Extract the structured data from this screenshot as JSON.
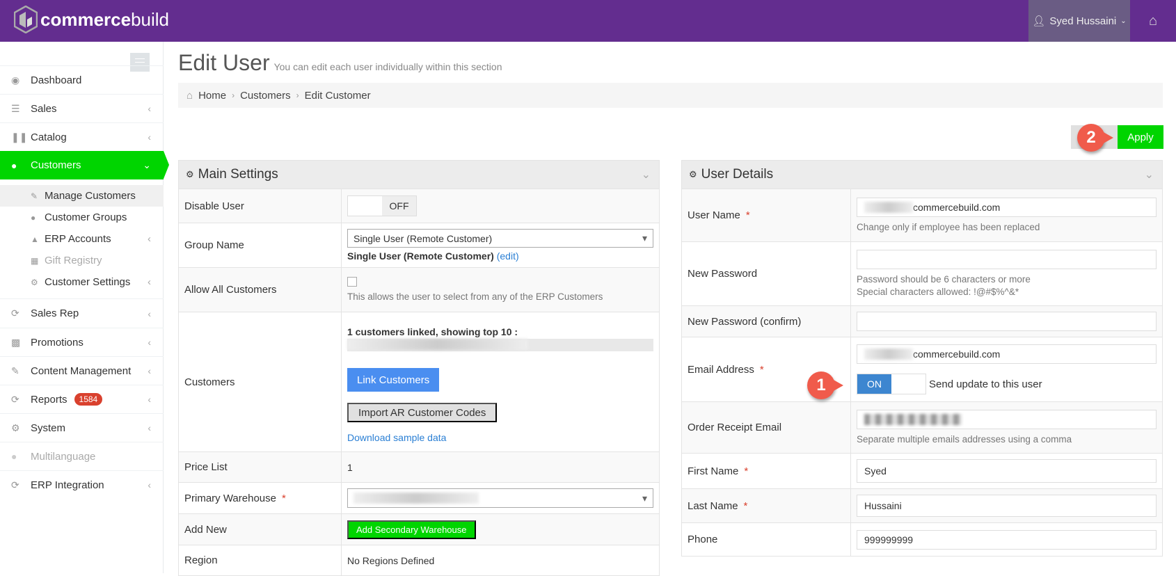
{
  "brand": {
    "name_bold": "commerce",
    "name_light": "build"
  },
  "topbar": {
    "user": "Syed Hussaini",
    "home_icon": "home-icon"
  },
  "sidebar": {
    "items": [
      {
        "label": "Dashboard",
        "icon": "dashboard-icon"
      },
      {
        "label": "Sales",
        "icon": "sales-icon"
      },
      {
        "label": "Catalog",
        "icon": "barcode-icon"
      },
      {
        "label": "Customers",
        "icon": "user-icon",
        "active": true
      },
      {
        "label": "Sales Rep",
        "icon": "refresh-icon"
      },
      {
        "label": "Promotions",
        "icon": "bar-chart-icon"
      },
      {
        "label": "Content Management",
        "icon": "edit-icon"
      },
      {
        "label": "Reports",
        "icon": "refresh-icon",
        "badge": "1584"
      },
      {
        "label": "System",
        "icon": "cogs-icon"
      },
      {
        "label": "Multilanguage",
        "icon": "users-icon",
        "disabled": true
      },
      {
        "label": "ERP Integration",
        "icon": "refresh-icon"
      }
    ],
    "sub_items": [
      {
        "label": "Manage Customers",
        "selected": true
      },
      {
        "label": "Customer Groups"
      },
      {
        "label": "ERP Accounts"
      },
      {
        "label": "Gift Registry",
        "disabled": true
      },
      {
        "label": "Customer Settings"
      }
    ]
  },
  "page": {
    "title": "Edit User",
    "subtitle": "You can edit each user individually within this section"
  },
  "breadcrumb": [
    "Home",
    "Customers",
    "Edit Customer"
  ],
  "apply_label": "Apply",
  "callouts": [
    "1",
    "2"
  ],
  "main_settings": {
    "title": "Main Settings",
    "disable_user": {
      "label": "Disable User",
      "state": "OFF"
    },
    "group_name": {
      "label": "Group Name",
      "selected": "Single User (Remote Customer)",
      "current": "Single User (Remote Customer)",
      "edit": "(edit)"
    },
    "allow_all": {
      "label": "Allow All Customers",
      "checked": false,
      "help": "This allows the user to select from any of the ERP Customers"
    },
    "customers": {
      "label": "Customers",
      "summary": "1 customers linked, showing top 10 :",
      "link_btn": "Link Customers",
      "import_btn": "Import AR Customer Codes",
      "download": "Download sample data"
    },
    "price_list": {
      "label": "Price List",
      "value": "1"
    },
    "primary_warehouse": {
      "label": "Primary Warehouse"
    },
    "add_new": {
      "label": "Add New",
      "button": "Add Secondary Warehouse"
    },
    "region": {
      "label": "Region",
      "value": "No Regions Defined"
    }
  },
  "user_details": {
    "title": "User Details",
    "user_name": {
      "label": "User Name",
      "value": "commercebuild.com",
      "help": "Change only if employee has been replaced"
    },
    "new_password": {
      "label": "New Password",
      "value": "",
      "help1": "Password should be 6 characters or more",
      "help2": "Special characters allowed: !@#$%^&*"
    },
    "confirm": {
      "label": "New Password (confirm)",
      "value": ""
    },
    "email": {
      "label": "Email Address",
      "value": "commercebuild.com",
      "toggle": "ON",
      "toggle_label": "Send update to this user"
    },
    "order_receipt": {
      "label": "Order Receipt Email",
      "help": "Separate multiple emails addresses using a comma"
    },
    "first_name": {
      "label": "First Name",
      "value": "Syed"
    },
    "last_name": {
      "label": "Last Name",
      "value": "Hussaini"
    },
    "phone": {
      "label": "Phone",
      "value": "999999999"
    }
  }
}
